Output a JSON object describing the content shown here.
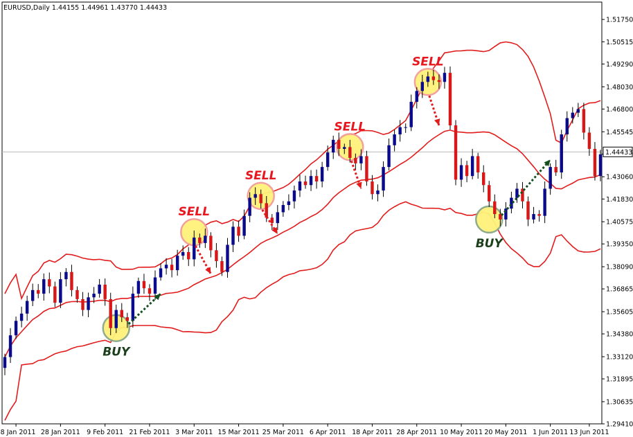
{
  "title": "EURUSD,Daily  1.44155 1.44961 1.43770 1.44433",
  "colors": {
    "bull": "#0a0a8c",
    "bear": "#d81818",
    "band": "#e21c1c",
    "sell_arrow": "#e21c1c",
    "buy_arrow": "#14501e",
    "highlight_fill": "#fff27a",
    "sell_ring": "#f29b9b",
    "buy_ring": "#8aa88a"
  },
  "chart_data": {
    "type": "candlestick",
    "symbol": "EURUSD",
    "timeframe": "Daily",
    "ohlc": {
      "open": 1.44155,
      "high": 1.44961,
      "low": 1.4377,
      "close": 1.44433
    },
    "current_price": "1.44433",
    "ylim": [
      1.2941,
      1.5271
    ],
    "y_ticks": [
      "1.51750",
      "1.50515",
      "1.49290",
      "1.48030",
      "1.46800",
      "1.45545",
      "1.44310",
      "1.43060",
      "1.41830",
      "1.40575",
      "1.39350",
      "1.38090",
      "1.36865",
      "1.35605",
      "1.34380",
      "1.33120",
      "1.31895",
      "1.30635",
      "1.29410"
    ],
    "x_ticks": [
      {
        "i": 2,
        "label": "18 Jan 2011"
      },
      {
        "i": 10,
        "label": "28 Jan 2011"
      },
      {
        "i": 18,
        "label": "9 Feb 2011"
      },
      {
        "i": 26,
        "label": "21 Feb 2011"
      },
      {
        "i": 34,
        "label": "3 Mar 2011"
      },
      {
        "i": 42,
        "label": "15 Mar 2011"
      },
      {
        "i": 50,
        "label": "25 Mar 2011"
      },
      {
        "i": 58,
        "label": "6 Apr 2011"
      },
      {
        "i": 66,
        "label": "18 Apr 2011"
      },
      {
        "i": 74,
        "label": "28 Apr 2011"
      },
      {
        "i": 82,
        "label": "10 May 2011"
      },
      {
        "i": 90,
        "label": "20 May 2011"
      },
      {
        "i": 98,
        "label": "1 Jun 2011"
      },
      {
        "i": 105,
        "label": "13 Jun 2011"
      }
    ],
    "closes": [
      1.331,
      1.343,
      1.351,
      1.355,
      1.362,
      1.368,
      1.366,
      1.374,
      1.37,
      1.361,
      1.374,
      1.378,
      1.368,
      1.363,
      1.357,
      1.364,
      1.366,
      1.371,
      1.363,
      1.347,
      1.357,
      1.353,
      1.351,
      1.366,
      1.373,
      1.369,
      1.366,
      1.375,
      1.38,
      1.382,
      1.379,
      1.387,
      1.389,
      1.385,
      1.397,
      1.394,
      1.398,
      1.39,
      1.384,
      1.378,
      1.393,
      1.403,
      1.398,
      1.409,
      1.419,
      1.421,
      1.416,
      1.408,
      1.405,
      1.411,
      1.415,
      1.417,
      1.423,
      1.428,
      1.426,
      1.431,
      1.428,
      1.436,
      1.444,
      1.451,
      1.446,
      1.447,
      1.441,
      1.438,
      1.442,
      1.428,
      1.421,
      1.423,
      1.436,
      1.448,
      1.454,
      1.458,
      1.458,
      1.472,
      1.478,
      1.483,
      1.486,
      1.484,
      1.483,
      1.488,
      1.459,
      1.429,
      1.437,
      1.431,
      1.442,
      1.433,
      1.426,
      1.417,
      1.41,
      1.407,
      1.413,
      1.419,
      1.424,
      1.417,
      1.407,
      1.41,
      1.409,
      1.424,
      1.436,
      1.433,
      1.454,
      1.463,
      1.466,
      1.468,
      1.455,
      1.446,
      1.431,
      1.443
    ],
    "annotations": [
      {
        "label": "SELL",
        "i": 34,
        "price": 1.4,
        "arrow_to_i": 37,
        "arrow_to_price": 1.377
      },
      {
        "label": "SELL",
        "i": 46,
        "price": 1.42,
        "arrow_to_i": 49,
        "arrow_to_price": 1.399
      },
      {
        "label": "SELL",
        "i": 62,
        "price": 1.447,
        "arrow_to_i": 64,
        "arrow_to_price": 1.424
      },
      {
        "label": "SELL",
        "i": 76,
        "price": 1.483,
        "arrow_to_i": 78,
        "arrow_to_price": 1.459
      },
      {
        "label": "BUY",
        "i": 20,
        "price": 1.347,
        "arrow_to_i": 28,
        "arrow_to_price": 1.366
      },
      {
        "label": "BUY",
        "i": 87,
        "price": 1.407,
        "arrow_to_i": 98,
        "arrow_to_price": 1.44
      }
    ]
  }
}
